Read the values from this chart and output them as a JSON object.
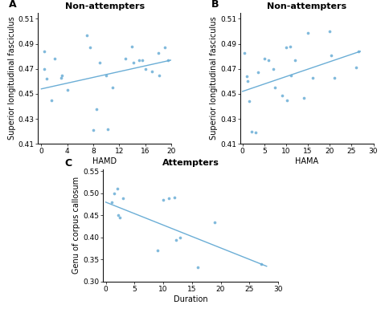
{
  "panel_A": {
    "title": "Non-attempters",
    "xlabel": "HAMD",
    "ylabel": "Superior longitudinal fasciculus",
    "xlim": [
      -0.5,
      20
    ],
    "ylim": [
      0.41,
      0.515
    ],
    "yticks": [
      0.41,
      0.43,
      0.45,
      0.47,
      0.49,
      0.51
    ],
    "ytick_labels": [
      "0.41",
      "0.43",
      "0.45",
      "0.47",
      "0.49",
      "0.51"
    ],
    "xticks": [
      0,
      4,
      8,
      12,
      16,
      20
    ],
    "scatter_x": [
      0.5,
      0.5,
      0.8,
      1.5,
      2,
      3,
      3.2,
      4,
      7,
      7.5,
      8,
      8.5,
      9,
      10,
      10.2,
      11,
      13,
      14,
      14.2,
      15,
      15.5,
      16,
      17,
      18,
      18.2,
      19,
      19.5
    ],
    "scatter_y": [
      0.484,
      0.47,
      0.462,
      0.445,
      0.478,
      0.463,
      0.465,
      0.453,
      0.497,
      0.487,
      0.421,
      0.438,
      0.475,
      0.465,
      0.422,
      0.455,
      0.478,
      0.488,
      0.475,
      0.477,
      0.477,
      0.47,
      0.468,
      0.483,
      0.465,
      0.487,
      0.477
    ],
    "line_x": [
      0,
      20
    ],
    "line_y": [
      0.454,
      0.477
    ],
    "dot_color": "#6baed6",
    "line_color": "#6baed6"
  },
  "panel_B": {
    "title": "Non-attempters",
    "xlabel": "HAMA",
    "ylabel": "Superior longitudinal fasciculus",
    "xlim": [
      -0.5,
      30
    ],
    "ylim": [
      0.41,
      0.515
    ],
    "yticks": [
      0.41,
      0.43,
      0.45,
      0.47,
      0.49,
      0.51
    ],
    "ytick_labels": [
      "0.41",
      "0.43",
      "0.45",
      "0.47",
      "0.49",
      "0.51"
    ],
    "xticks": [
      0,
      5,
      10,
      15,
      20,
      25,
      30
    ],
    "scatter_x": [
      0.5,
      1,
      1.2,
      1.5,
      2,
      3,
      3.5,
      5,
      6,
      7,
      7.5,
      9,
      10,
      10.2,
      11,
      11.2,
      12,
      14,
      15,
      16,
      20,
      20.3,
      21,
      26,
      26.5
    ],
    "scatter_y": [
      0.483,
      0.464,
      0.46,
      0.444,
      0.42,
      0.419,
      0.467,
      0.478,
      0.477,
      0.47,
      0.455,
      0.449,
      0.487,
      0.445,
      0.488,
      0.465,
      0.477,
      0.447,
      0.499,
      0.463,
      0.5,
      0.481,
      0.463,
      0.471,
      0.484
    ],
    "line_x": [
      0,
      27
    ],
    "line_y": [
      0.452,
      0.484
    ],
    "dot_color": "#6baed6",
    "line_color": "#6baed6"
  },
  "panel_C": {
    "title": "Attempters",
    "xlabel": "Duration",
    "ylabel": "Genu of corpus callosum",
    "xlim": [
      -0.5,
      30
    ],
    "ylim": [
      0.3,
      0.555
    ],
    "yticks": [
      0.3,
      0.35,
      0.4,
      0.45,
      0.5,
      0.55
    ],
    "ytick_labels": [
      "0.30",
      "0.35",
      "0.40",
      "0.45",
      "0.50",
      "0.55"
    ],
    "xticks": [
      0,
      5,
      10,
      15,
      20,
      25,
      30
    ],
    "scatter_x": [
      1,
      1.5,
      2,
      2.2,
      2.4,
      3,
      9,
      10,
      11,
      12,
      12.3,
      13,
      16,
      19,
      27
    ],
    "scatter_y": [
      0.48,
      0.5,
      0.51,
      0.45,
      0.445,
      0.488,
      0.37,
      0.485,
      0.489,
      0.49,
      0.395,
      0.4,
      0.332,
      0.435,
      0.34
    ],
    "line_x": [
      0,
      28
    ],
    "line_y": [
      0.48,
      0.335
    ],
    "dot_color": "#6baed6",
    "line_color": "#6baed6"
  },
  "label_fontsize": 7,
  "title_fontsize": 8,
  "tick_fontsize": 6.5,
  "background_color": "#ffffff"
}
